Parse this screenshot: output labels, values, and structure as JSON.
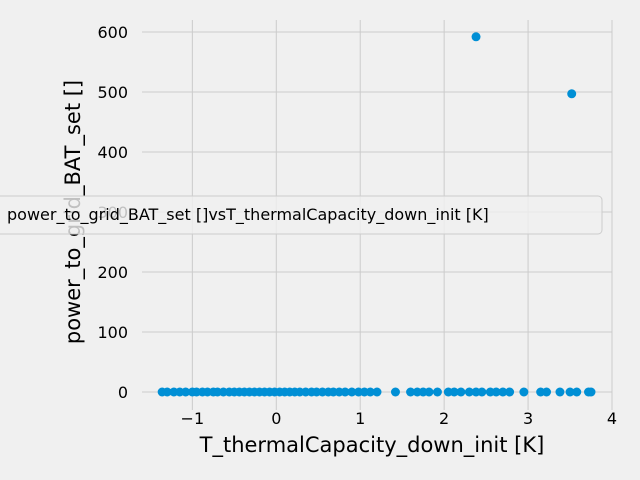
{
  "chart_data": {
    "type": "scatter",
    "xlabel": "T_thermalCapacity_down_init [K]",
    "ylabel": "power_to_grid_BAT_set []",
    "legend_label": "power_to_grid_BAT_set []vsT_thermalCapacity_down_init [K]",
    "legend_position": "center-left",
    "grid": true,
    "xlim": [
      -1.6,
      4.0
    ],
    "ylim": [
      -30,
      620
    ],
    "x_ticks": [
      -1,
      0,
      1,
      2,
      3,
      4
    ],
    "y_ticks": [
      0,
      100,
      200,
      300,
      400,
      500,
      600
    ],
    "marker_color": "#008fd5",
    "background_color": "#f0f0f0",
    "grid_color": "#cbcbcb",
    "series": [
      {
        "points": [
          {
            "x": 2.38,
            "y": 592
          },
          {
            "x": 3.52,
            "y": 497
          },
          {
            "x": -1.36,
            "y": 0
          },
          {
            "x": -1.3,
            "y": 0
          },
          {
            "x": -1.22,
            "y": 0
          },
          {
            "x": -1.15,
            "y": 0
          },
          {
            "x": -1.08,
            "y": 0
          },
          {
            "x": -1.0,
            "y": 0
          },
          {
            "x": -0.95,
            "y": 0
          },
          {
            "x": -0.88,
            "y": 0
          },
          {
            "x": -0.82,
            "y": 0
          },
          {
            "x": -0.75,
            "y": 0
          },
          {
            "x": -0.7,
            "y": 0
          },
          {
            "x": -0.63,
            "y": 0
          },
          {
            "x": -0.56,
            "y": 0
          },
          {
            "x": -0.5,
            "y": 0
          },
          {
            "x": -0.44,
            "y": 0
          },
          {
            "x": -0.38,
            "y": 0
          },
          {
            "x": -0.32,
            "y": 0
          },
          {
            "x": -0.26,
            "y": 0
          },
          {
            "x": -0.2,
            "y": 0
          },
          {
            "x": -0.14,
            "y": 0
          },
          {
            "x": -0.08,
            "y": 0
          },
          {
            "x": -0.02,
            "y": 0
          },
          {
            "x": 0.04,
            "y": 0
          },
          {
            "x": 0.1,
            "y": 0
          },
          {
            "x": 0.16,
            "y": 0
          },
          {
            "x": 0.22,
            "y": 0
          },
          {
            "x": 0.28,
            "y": 0
          },
          {
            "x": 0.35,
            "y": 0
          },
          {
            "x": 0.42,
            "y": 0
          },
          {
            "x": 0.48,
            "y": 0
          },
          {
            "x": 0.55,
            "y": 0
          },
          {
            "x": 0.62,
            "y": 0
          },
          {
            "x": 0.68,
            "y": 0
          },
          {
            "x": 0.75,
            "y": 0
          },
          {
            "x": 0.82,
            "y": 0
          },
          {
            "x": 0.9,
            "y": 0
          },
          {
            "x": 0.98,
            "y": 0
          },
          {
            "x": 1.05,
            "y": 0
          },
          {
            "x": 1.12,
            "y": 0
          },
          {
            "x": 1.2,
            "y": 0
          },
          {
            "x": 1.42,
            "y": 0
          },
          {
            "x": 1.6,
            "y": 0
          },
          {
            "x": 1.68,
            "y": 0
          },
          {
            "x": 1.75,
            "y": 0
          },
          {
            "x": 1.82,
            "y": 0
          },
          {
            "x": 1.92,
            "y": 0
          },
          {
            "x": 2.05,
            "y": 0
          },
          {
            "x": 2.12,
            "y": 0
          },
          {
            "x": 2.2,
            "y": 0
          },
          {
            "x": 2.3,
            "y": 0
          },
          {
            "x": 2.38,
            "y": 0
          },
          {
            "x": 2.45,
            "y": 0
          },
          {
            "x": 2.55,
            "y": 0
          },
          {
            "x": 2.62,
            "y": 0
          },
          {
            "x": 2.7,
            "y": 0
          },
          {
            "x": 2.78,
            "y": 0
          },
          {
            "x": 2.95,
            "y": 0
          },
          {
            "x": 3.15,
            "y": 0
          },
          {
            "x": 3.22,
            "y": 0
          },
          {
            "x": 3.38,
            "y": 0
          },
          {
            "x": 3.5,
            "y": 0
          },
          {
            "x": 3.58,
            "y": 0
          },
          {
            "x": 3.72,
            "y": 0
          },
          {
            "x": 3.75,
            "y": 0
          }
        ]
      }
    ]
  }
}
